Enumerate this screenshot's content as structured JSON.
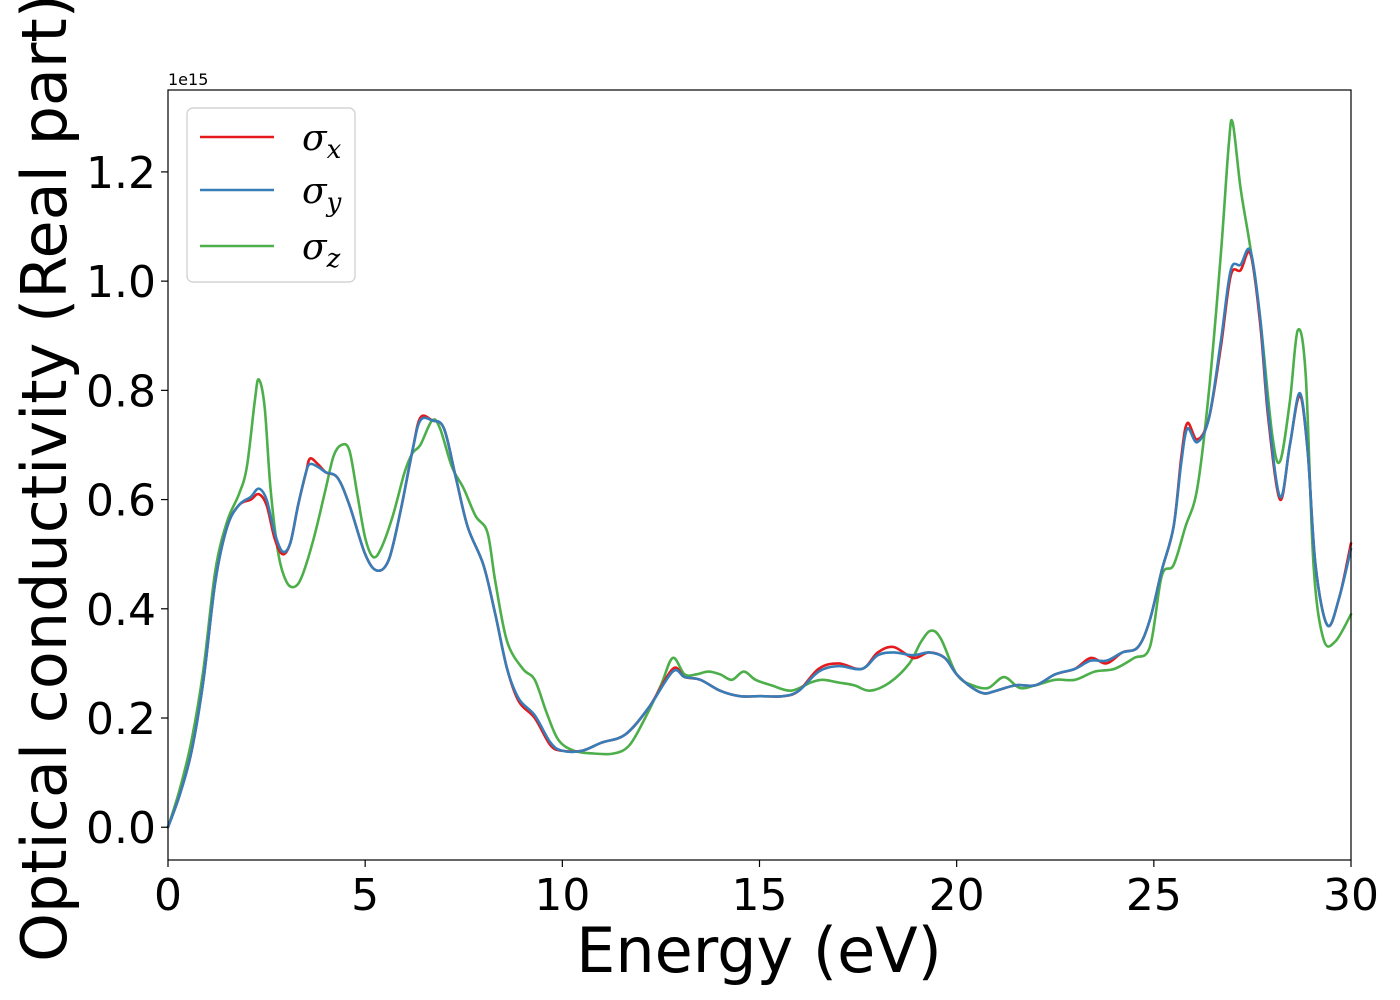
{
  "chart_data": {
    "type": "line",
    "xlabel": "Energy (eV)",
    "ylabel": "Optical conductivity (Real part)",
    "y_offset_text": "1e15",
    "y_scale_factor": 1000000000000000.0,
    "xlim": [
      0,
      30
    ],
    "ylim": [
      -0.06,
      1.35
    ],
    "x_ticks": [
      0,
      5,
      10,
      15,
      20,
      25,
      30
    ],
    "x_tick_labels": [
      "0",
      "5",
      "10",
      "15",
      "20",
      "25",
      "30"
    ],
    "y_ticks": [
      0.0,
      0.2,
      0.4,
      0.6,
      0.8,
      1.0,
      1.2
    ],
    "y_tick_labels": [
      "0.0",
      "0.2",
      "0.4",
      "0.6",
      "0.8",
      "1.0",
      "1.2"
    ],
    "grid": false,
    "legend_position": "top-left",
    "series": [
      {
        "name": "σx",
        "legend_symbol": "σ",
        "legend_subscript": "x",
        "color": "#e41a1c",
        "points": [
          [
            0,
            0
          ],
          [
            0.3,
            0.06
          ],
          [
            0.6,
            0.14
          ],
          [
            0.9,
            0.27
          ],
          [
            1.2,
            0.45
          ],
          [
            1.5,
            0.55
          ],
          [
            1.8,
            0.59
          ],
          [
            2.1,
            0.6
          ],
          [
            2.3,
            0.61
          ],
          [
            2.5,
            0.59
          ],
          [
            2.7,
            0.53
          ],
          [
            2.9,
            0.5
          ],
          [
            3.1,
            0.52
          ],
          [
            3.3,
            0.59
          ],
          [
            3.5,
            0.65
          ],
          [
            3.6,
            0.675
          ],
          [
            3.8,
            0.665
          ],
          [
            4.0,
            0.65
          ],
          [
            4.3,
            0.64
          ],
          [
            4.6,
            0.59
          ],
          [
            5.0,
            0.5
          ],
          [
            5.3,
            0.47
          ],
          [
            5.6,
            0.49
          ],
          [
            5.9,
            0.58
          ],
          [
            6.2,
            0.69
          ],
          [
            6.4,
            0.75
          ],
          [
            6.7,
            0.745
          ],
          [
            7.0,
            0.73
          ],
          [
            7.3,
            0.64
          ],
          [
            7.6,
            0.55
          ],
          [
            8.0,
            0.48
          ],
          [
            8.3,
            0.39
          ],
          [
            8.6,
            0.29
          ],
          [
            8.9,
            0.23
          ],
          [
            9.3,
            0.2
          ],
          [
            9.7,
            0.15
          ],
          [
            10.0,
            0.14
          ],
          [
            10.5,
            0.14
          ],
          [
            11.0,
            0.155
          ],
          [
            11.6,
            0.17
          ],
          [
            12.2,
            0.22
          ],
          [
            12.8,
            0.29
          ],
          [
            13.1,
            0.275
          ],
          [
            13.5,
            0.27
          ],
          [
            14.0,
            0.25
          ],
          [
            14.5,
            0.24
          ],
          [
            15.0,
            0.24
          ],
          [
            15.6,
            0.24
          ],
          [
            16.0,
            0.25
          ],
          [
            16.5,
            0.29
          ],
          [
            17.0,
            0.3
          ],
          [
            17.6,
            0.29
          ],
          [
            18.0,
            0.32
          ],
          [
            18.4,
            0.33
          ],
          [
            18.9,
            0.31
          ],
          [
            19.3,
            0.32
          ],
          [
            19.7,
            0.31
          ],
          [
            20.0,
            0.28
          ],
          [
            20.4,
            0.255
          ],
          [
            20.7,
            0.245
          ],
          [
            21.0,
            0.25
          ],
          [
            21.5,
            0.26
          ],
          [
            22.0,
            0.26
          ],
          [
            22.5,
            0.28
          ],
          [
            23.0,
            0.29
          ],
          [
            23.4,
            0.31
          ],
          [
            23.8,
            0.3
          ],
          [
            24.2,
            0.32
          ],
          [
            24.6,
            0.33
          ],
          [
            24.9,
            0.38
          ],
          [
            25.2,
            0.47
          ],
          [
            25.5,
            0.55
          ],
          [
            25.7,
            0.68
          ],
          [
            25.85,
            0.74
          ],
          [
            26.1,
            0.71
          ],
          [
            26.4,
            0.75
          ],
          [
            26.7,
            0.88
          ],
          [
            26.95,
            1.01
          ],
          [
            27.2,
            1.02
          ],
          [
            27.45,
            1.05
          ],
          [
            27.7,
            0.92
          ],
          [
            27.9,
            0.75
          ],
          [
            28.2,
            0.6
          ],
          [
            28.45,
            0.7
          ],
          [
            28.7,
            0.79
          ],
          [
            28.9,
            0.69
          ],
          [
            29.1,
            0.48
          ],
          [
            29.4,
            0.37
          ],
          [
            29.7,
            0.42
          ],
          [
            30.0,
            0.52
          ]
        ]
      },
      {
        "name": "σy",
        "legend_symbol": "σ",
        "legend_subscript": "y",
        "color": "#377eb8",
        "points": [
          [
            0,
            0
          ],
          [
            0.3,
            0.06
          ],
          [
            0.6,
            0.14
          ],
          [
            0.9,
            0.27
          ],
          [
            1.2,
            0.45
          ],
          [
            1.5,
            0.55
          ],
          [
            1.8,
            0.59
          ],
          [
            2.1,
            0.605
          ],
          [
            2.3,
            0.62
          ],
          [
            2.5,
            0.6
          ],
          [
            2.7,
            0.54
          ],
          [
            2.9,
            0.505
          ],
          [
            3.1,
            0.52
          ],
          [
            3.3,
            0.59
          ],
          [
            3.5,
            0.65
          ],
          [
            3.6,
            0.665
          ],
          [
            3.8,
            0.66
          ],
          [
            4.0,
            0.65
          ],
          [
            4.3,
            0.64
          ],
          [
            4.6,
            0.59
          ],
          [
            5.0,
            0.5
          ],
          [
            5.3,
            0.47
          ],
          [
            5.6,
            0.49
          ],
          [
            5.9,
            0.58
          ],
          [
            6.2,
            0.69
          ],
          [
            6.4,
            0.745
          ],
          [
            6.7,
            0.745
          ],
          [
            7.0,
            0.73
          ],
          [
            7.3,
            0.64
          ],
          [
            7.6,
            0.55
          ],
          [
            8.0,
            0.48
          ],
          [
            8.3,
            0.39
          ],
          [
            8.6,
            0.29
          ],
          [
            8.9,
            0.235
          ],
          [
            9.3,
            0.205
          ],
          [
            9.7,
            0.155
          ],
          [
            10.0,
            0.14
          ],
          [
            10.5,
            0.14
          ],
          [
            11.0,
            0.155
          ],
          [
            11.6,
            0.17
          ],
          [
            12.2,
            0.22
          ],
          [
            12.8,
            0.285
          ],
          [
            13.1,
            0.275
          ],
          [
            13.5,
            0.27
          ],
          [
            14.0,
            0.25
          ],
          [
            14.5,
            0.24
          ],
          [
            15.0,
            0.24
          ],
          [
            15.6,
            0.24
          ],
          [
            16.0,
            0.25
          ],
          [
            16.5,
            0.285
          ],
          [
            17.0,
            0.295
          ],
          [
            17.6,
            0.29
          ],
          [
            18.0,
            0.315
          ],
          [
            18.4,
            0.32
          ],
          [
            18.9,
            0.315
          ],
          [
            19.3,
            0.32
          ],
          [
            19.7,
            0.31
          ],
          [
            20.0,
            0.28
          ],
          [
            20.4,
            0.255
          ],
          [
            20.7,
            0.245
          ],
          [
            21.0,
            0.25
          ],
          [
            21.5,
            0.26
          ],
          [
            22.0,
            0.26
          ],
          [
            22.5,
            0.28
          ],
          [
            23.0,
            0.29
          ],
          [
            23.4,
            0.305
          ],
          [
            23.8,
            0.305
          ],
          [
            24.2,
            0.32
          ],
          [
            24.6,
            0.33
          ],
          [
            24.9,
            0.38
          ],
          [
            25.2,
            0.47
          ],
          [
            25.5,
            0.55
          ],
          [
            25.7,
            0.67
          ],
          [
            25.85,
            0.73
          ],
          [
            26.1,
            0.705
          ],
          [
            26.4,
            0.75
          ],
          [
            26.7,
            0.89
          ],
          [
            26.95,
            1.02
          ],
          [
            27.2,
            1.03
          ],
          [
            27.45,
            1.055
          ],
          [
            27.7,
            0.93
          ],
          [
            27.9,
            0.76
          ],
          [
            28.2,
            0.605
          ],
          [
            28.45,
            0.7
          ],
          [
            28.7,
            0.795
          ],
          [
            28.9,
            0.69
          ],
          [
            29.1,
            0.48
          ],
          [
            29.4,
            0.37
          ],
          [
            29.7,
            0.42
          ],
          [
            30.0,
            0.51
          ]
        ]
      },
      {
        "name": "σz",
        "legend_symbol": "σ",
        "legend_subscript": "z",
        "color": "#4daf4a",
        "points": [
          [
            0,
            0
          ],
          [
            0.3,
            0.07
          ],
          [
            0.6,
            0.16
          ],
          [
            0.9,
            0.29
          ],
          [
            1.2,
            0.47
          ],
          [
            1.5,
            0.56
          ],
          [
            1.8,
            0.61
          ],
          [
            2.0,
            0.66
          ],
          [
            2.2,
            0.78
          ],
          [
            2.3,
            0.82
          ],
          [
            2.45,
            0.77
          ],
          [
            2.6,
            0.62
          ],
          [
            2.8,
            0.5
          ],
          [
            3.0,
            0.45
          ],
          [
            3.2,
            0.44
          ],
          [
            3.4,
            0.46
          ],
          [
            3.7,
            0.53
          ],
          [
            4.0,
            0.62
          ],
          [
            4.2,
            0.68
          ],
          [
            4.4,
            0.7
          ],
          [
            4.6,
            0.69
          ],
          [
            4.8,
            0.61
          ],
          [
            5.0,
            0.53
          ],
          [
            5.2,
            0.495
          ],
          [
            5.4,
            0.51
          ],
          [
            5.7,
            0.57
          ],
          [
            6.0,
            0.65
          ],
          [
            6.2,
            0.685
          ],
          [
            6.4,
            0.7
          ],
          [
            6.7,
            0.745
          ],
          [
            6.9,
            0.73
          ],
          [
            7.2,
            0.66
          ],
          [
            7.5,
            0.62
          ],
          [
            7.8,
            0.57
          ],
          [
            8.1,
            0.54
          ],
          [
            8.3,
            0.45
          ],
          [
            8.6,
            0.34
          ],
          [
            9.0,
            0.29
          ],
          [
            9.3,
            0.27
          ],
          [
            9.6,
            0.21
          ],
          [
            9.9,
            0.16
          ],
          [
            10.3,
            0.14
          ],
          [
            10.8,
            0.135
          ],
          [
            11.3,
            0.135
          ],
          [
            11.7,
            0.15
          ],
          [
            12.1,
            0.2
          ],
          [
            12.5,
            0.26
          ],
          [
            12.8,
            0.31
          ],
          [
            13.1,
            0.28
          ],
          [
            13.4,
            0.28
          ],
          [
            13.7,
            0.285
          ],
          [
            14.0,
            0.28
          ],
          [
            14.3,
            0.27
          ],
          [
            14.6,
            0.285
          ],
          [
            14.9,
            0.27
          ],
          [
            15.3,
            0.26
          ],
          [
            15.8,
            0.25
          ],
          [
            16.3,
            0.265
          ],
          [
            16.6,
            0.27
          ],
          [
            17.0,
            0.265
          ],
          [
            17.4,
            0.26
          ],
          [
            17.8,
            0.25
          ],
          [
            18.3,
            0.265
          ],
          [
            18.8,
            0.3
          ],
          [
            19.1,
            0.34
          ],
          [
            19.35,
            0.36
          ],
          [
            19.6,
            0.345
          ],
          [
            20.0,
            0.28
          ],
          [
            20.4,
            0.26
          ],
          [
            20.8,
            0.255
          ],
          [
            21.2,
            0.275
          ],
          [
            21.6,
            0.255
          ],
          [
            22.0,
            0.26
          ],
          [
            22.5,
            0.27
          ],
          [
            23.0,
            0.27
          ],
          [
            23.5,
            0.285
          ],
          [
            24.0,
            0.29
          ],
          [
            24.5,
            0.31
          ],
          [
            24.9,
            0.33
          ],
          [
            25.2,
            0.46
          ],
          [
            25.5,
            0.48
          ],
          [
            25.8,
            0.55
          ],
          [
            26.1,
            0.62
          ],
          [
            26.4,
            0.8
          ],
          [
            26.7,
            1.05
          ],
          [
            26.9,
            1.25
          ],
          [
            27.0,
            1.29
          ],
          [
            27.2,
            1.17
          ],
          [
            27.45,
            1.06
          ],
          [
            27.7,
            0.93
          ],
          [
            28.0,
            0.72
          ],
          [
            28.2,
            0.67
          ],
          [
            28.45,
            0.78
          ],
          [
            28.65,
            0.91
          ],
          [
            28.85,
            0.83
          ],
          [
            29.05,
            0.48
          ],
          [
            29.3,
            0.345
          ],
          [
            29.6,
            0.34
          ],
          [
            30.0,
            0.39
          ]
        ]
      }
    ]
  }
}
